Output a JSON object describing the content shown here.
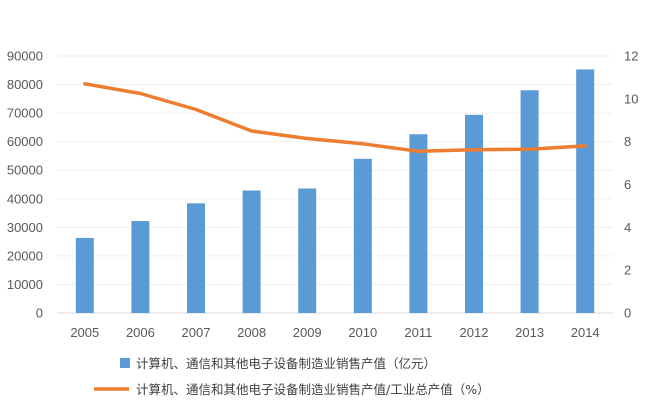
{
  "chart_data": {
    "type": "bar+line",
    "categories": [
      "2005",
      "2006",
      "2007",
      "2008",
      "2009",
      "2010",
      "2011",
      "2012",
      "2013",
      "2014"
    ],
    "series": [
      {
        "name": "计算机、通信和其他电子设备制造业销售产值（亿元）",
        "type": "bar",
        "axis": "left",
        "color": "#5b9bd5",
        "values": [
          26300,
          32200,
          38400,
          42900,
          43600,
          54000,
          62600,
          69400,
          78000,
          85300
        ]
      },
      {
        "name": "计算机、通信和其他电子设备制造业销售产值/工业总产值（%）",
        "type": "line",
        "axis": "right",
        "color": "#ed7d31",
        "values": [
          10.7,
          10.25,
          9.5,
          8.5,
          8.15,
          7.9,
          7.55,
          7.62,
          7.65,
          7.8
        ]
      }
    ],
    "y_left": {
      "min": 0,
      "max": 90000,
      "step": 10000,
      "ticks": [
        "0",
        "10000",
        "20000",
        "30000",
        "40000",
        "50000",
        "60000",
        "70000",
        "80000",
        "90000"
      ]
    },
    "y_right": {
      "min": 0,
      "max": 12,
      "step": 2,
      "ticks": [
        "0",
        "2",
        "4",
        "6",
        "8",
        "10",
        "12"
      ]
    },
    "grid": true,
    "legend_position": "bottom-left"
  }
}
